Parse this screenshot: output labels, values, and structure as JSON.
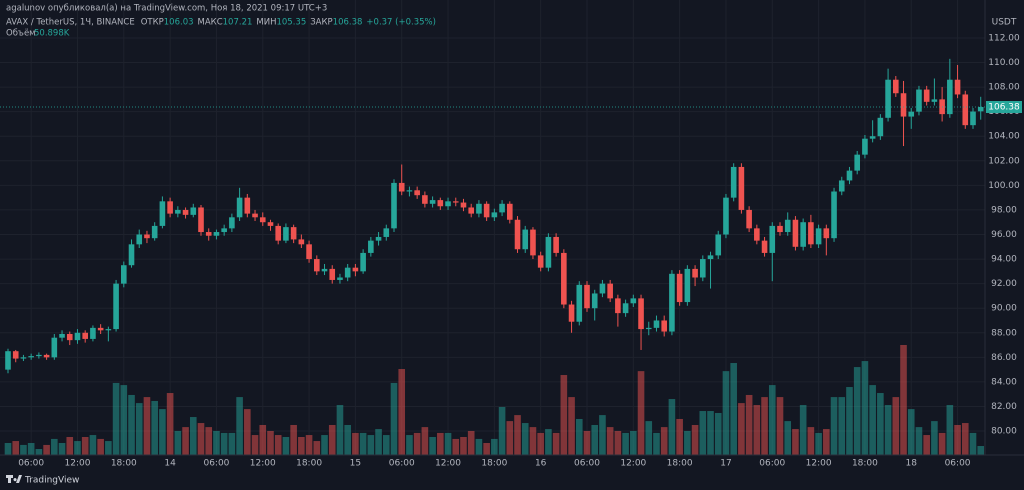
{
  "chart_data": {
    "type": "candlestick",
    "attribution": "agalunov опубликовал(а) на TradingView.com, Ноя 18, 2021 09:17 UTC+3",
    "symbol": "AVAX / TetherUS, 1Ч, BINANCE",
    "ohlc_labels": [
      "ОТКР",
      "МАКС",
      "МИН",
      "ЗАКР"
    ],
    "change": "+0.37 (+0.35%)",
    "currency": "USDT",
    "logo": "TradingView",
    "up_color": "#26a69a",
    "down_color": "#ef5350",
    "grid": true,
    "categories": [
      null,
      null,
      null,
      "06:00",
      null,
      null,
      null,
      null,
      null,
      "12:00",
      null,
      null,
      null,
      null,
      null,
      "18:00",
      null,
      null,
      null,
      null,
      null,
      "14",
      null,
      null,
      null,
      null,
      null,
      "06:00",
      null,
      null,
      null,
      null,
      null,
      "12:00",
      null,
      null,
      null,
      null,
      null,
      "18:00",
      null,
      null,
      null,
      null,
      null,
      "15",
      null,
      null,
      null,
      null,
      null,
      "06:00",
      null,
      null,
      null,
      null,
      null,
      "12:00",
      null,
      null,
      null,
      null,
      null,
      "18:00",
      null,
      null,
      null,
      null,
      null,
      "16",
      null,
      null,
      null,
      null,
      null,
      "06:00",
      null,
      null,
      null,
      null,
      null,
      "12:00",
      null,
      null,
      null,
      null,
      null,
      "18:00",
      null,
      null,
      null,
      null,
      null,
      "17",
      null,
      null,
      null,
      null,
      null,
      "06:00",
      null,
      null,
      null,
      null,
      null,
      "12:00",
      null,
      null,
      null,
      null,
      null,
      "18:00",
      null,
      null,
      null,
      null,
      null,
      "18",
      null,
      null,
      null,
      null,
      null,
      "06:00",
      null,
      null,
      null
    ],
    "ylim": [
      78.05,
      113.95
    ],
    "yticks": [
      {
        "value": 80,
        "label": "80.00"
      },
      {
        "value": 82,
        "label": "82.00"
      },
      {
        "value": 84,
        "label": "84.00"
      },
      {
        "value": 86,
        "label": "86.00"
      },
      {
        "value": 88,
        "label": "88.00"
      },
      {
        "value": 90,
        "label": "90.00"
      },
      {
        "value": 92,
        "label": "92.00"
      },
      {
        "value": 94,
        "label": "94.00"
      },
      {
        "value": 96,
        "label": "96.00"
      },
      {
        "value": 98,
        "label": "98.00"
      },
      {
        "value": 100,
        "label": "100.00"
      },
      {
        "value": 102,
        "label": "102.00"
      },
      {
        "value": 104,
        "label": "104.00"
      },
      {
        "value": 106,
        "label": "106.00"
      },
      {
        "value": 108,
        "label": "108.00"
      },
      {
        "value": 110,
        "label": "110.00"
      },
      {
        "value": 112,
        "label": "112.00"
      }
    ],
    "series": [
      {
        "name": "AVAX / TetherUS",
        "values": [
          [
            85.0,
            86.7,
            84.7,
            86.5
          ],
          [
            86.5,
            86.6,
            85.6,
            85.9
          ],
          [
            85.9,
            86.2,
            85.7,
            86.0
          ],
          [
            86.0,
            86.3,
            85.8,
            86.1
          ],
          [
            86.1,
            86.4,
            85.9,
            86.2
          ],
          [
            86.2,
            86.3,
            85.8,
            86.0
          ],
          [
            86.0,
            87.9,
            85.8,
            87.6
          ],
          [
            87.6,
            88.2,
            87.3,
            87.9
          ],
          [
            87.9,
            88.1,
            87.0,
            87.4
          ],
          [
            87.4,
            88.3,
            87.1,
            88.0
          ],
          [
            88.0,
            88.2,
            87.2,
            87.5
          ],
          [
            87.5,
            88.6,
            87.3,
            88.4
          ],
          [
            88.4,
            88.7,
            87.9,
            88.2
          ],
          [
            88.2,
            88.5,
            87.3,
            88.3
          ],
          [
            88.3,
            92.3,
            88.1,
            92.0
          ],
          [
            92.0,
            93.8,
            91.7,
            93.5
          ],
          [
            93.5,
            95.6,
            93.3,
            95.2
          ],
          [
            95.2,
            96.4,
            94.9,
            96.0
          ],
          [
            96.0,
            96.3,
            95.3,
            95.7
          ],
          [
            95.7,
            97.0,
            95.5,
            96.7
          ],
          [
            96.7,
            99.1,
            96.5,
            98.7
          ],
          [
            98.7,
            99.0,
            97.4,
            97.7
          ],
          [
            97.7,
            98.3,
            97.4,
            98.0
          ],
          [
            98.0,
            98.2,
            97.3,
            97.6
          ],
          [
            97.6,
            98.5,
            97.4,
            98.2
          ],
          [
            98.2,
            98.4,
            95.9,
            96.2
          ],
          [
            96.2,
            96.5,
            95.5,
            95.9
          ],
          [
            95.9,
            96.4,
            95.6,
            96.2
          ],
          [
            96.2,
            96.8,
            95.9,
            96.5
          ],
          [
            96.5,
            97.7,
            96.2,
            97.4
          ],
          [
            97.4,
            99.8,
            97.1,
            99.0
          ],
          [
            99.0,
            99.3,
            97.4,
            97.7
          ],
          [
            97.7,
            98.0,
            97.1,
            97.4
          ],
          [
            97.4,
            97.8,
            96.7,
            97.0
          ],
          [
            97.0,
            97.2,
            96.3,
            96.7
          ],
          [
            96.7,
            96.9,
            95.2,
            95.5
          ],
          [
            95.5,
            96.9,
            95.3,
            96.6
          ],
          [
            96.6,
            96.8,
            95.3,
            95.6
          ],
          [
            95.6,
            96.0,
            94.9,
            95.2
          ],
          [
            95.2,
            95.5,
            93.7,
            94.0
          ],
          [
            94.0,
            94.3,
            92.7,
            93.0
          ],
          [
            93.0,
            93.6,
            92.7,
            93.2
          ],
          [
            93.2,
            93.5,
            92.0,
            92.3
          ],
          [
            92.3,
            92.8,
            92.0,
            92.5
          ],
          [
            92.5,
            93.6,
            92.2,
            93.3
          ],
          [
            93.3,
            93.6,
            92.6,
            93.0
          ],
          [
            93.0,
            94.8,
            92.8,
            94.5
          ],
          [
            94.5,
            95.8,
            94.2,
            95.5
          ],
          [
            95.5,
            96.2,
            95.1,
            95.8
          ],
          [
            95.8,
            96.8,
            95.5,
            96.5
          ],
          [
            96.5,
            100.5,
            96.2,
            100.2
          ],
          [
            100.2,
            101.7,
            99.2,
            99.5
          ],
          [
            99.5,
            99.9,
            99.1,
            99.6
          ],
          [
            99.6,
            99.9,
            98.9,
            99.2
          ],
          [
            99.2,
            99.5,
            98.2,
            98.5
          ],
          [
            98.5,
            99.1,
            98.2,
            98.8
          ],
          [
            98.8,
            99.0,
            98.0,
            98.3
          ],
          [
            98.3,
            99.0,
            98.0,
            98.7
          ],
          [
            98.7,
            99.0,
            98.3,
            98.6
          ],
          [
            98.6,
            98.9,
            97.9,
            98.2
          ],
          [
            98.2,
            98.5,
            97.4,
            97.7
          ],
          [
            97.7,
            98.8,
            97.4,
            98.5
          ],
          [
            98.5,
            98.7,
            97.1,
            97.4
          ],
          [
            97.4,
            98.1,
            97.1,
            97.8
          ],
          [
            97.8,
            98.8,
            97.5,
            98.5
          ],
          [
            98.5,
            98.7,
            96.9,
            97.2
          ],
          [
            97.2,
            97.5,
            94.5,
            94.8
          ],
          [
            94.8,
            96.7,
            94.5,
            96.4
          ],
          [
            96.4,
            96.6,
            94.0,
            94.3
          ],
          [
            94.3,
            94.6,
            93.0,
            93.3
          ],
          [
            93.3,
            96.1,
            93.0,
            95.8
          ],
          [
            95.8,
            96.1,
            94.2,
            94.5
          ],
          [
            94.5,
            94.8,
            90.0,
            90.3
          ],
          [
            90.3,
            90.6,
            88.0,
            88.9
          ],
          [
            88.9,
            92.2,
            88.6,
            91.9
          ],
          [
            91.9,
            92.2,
            89.7,
            90.0
          ],
          [
            90.0,
            91.5,
            89.0,
            91.2
          ],
          [
            91.2,
            92.3,
            90.9,
            92.0
          ],
          [
            92.0,
            92.3,
            90.5,
            90.8
          ],
          [
            90.8,
            91.1,
            88.5,
            89.6
          ],
          [
            89.6,
            90.7,
            89.3,
            90.4
          ],
          [
            90.4,
            91.1,
            90.1,
            90.8
          ],
          [
            90.8,
            91.1,
            86.6,
            88.3
          ],
          [
            88.3,
            88.9,
            87.8,
            88.4
          ],
          [
            88.4,
            89.4,
            88.1,
            89.0
          ],
          [
            89.0,
            89.4,
            87.7,
            88.1
          ],
          [
            88.1,
            93.1,
            87.8,
            92.8
          ],
          [
            92.8,
            93.1,
            90.2,
            90.5
          ],
          [
            90.5,
            93.5,
            90.2,
            93.2
          ],
          [
            93.2,
            93.5,
            91.8,
            92.5
          ],
          [
            92.5,
            94.3,
            92.2,
            94.0
          ],
          [
            94.0,
            94.6,
            91.6,
            94.3
          ],
          [
            94.3,
            96.3,
            94.0,
            96.0
          ],
          [
            96.0,
            99.3,
            95.7,
            99.0
          ],
          [
            99.0,
            101.8,
            98.7,
            101.5
          ],
          [
            101.5,
            101.8,
            97.7,
            98.0
          ],
          [
            98.0,
            98.3,
            96.2,
            96.5
          ],
          [
            96.5,
            96.8,
            95.2,
            95.5
          ],
          [
            95.5,
            95.8,
            94.2,
            94.5
          ],
          [
            94.5,
            97.0,
            92.2,
            96.7
          ],
          [
            96.7,
            97.0,
            95.9,
            96.2
          ],
          [
            96.2,
            97.8,
            95.9,
            97.2
          ],
          [
            97.2,
            97.5,
            94.7,
            95.0
          ],
          [
            95.0,
            97.3,
            94.7,
            97.0
          ],
          [
            97.0,
            97.6,
            94.9,
            95.2
          ],
          [
            95.2,
            96.8,
            94.9,
            96.5
          ],
          [
            96.5,
            96.8,
            94.3,
            95.7
          ],
          [
            95.7,
            99.8,
            95.4,
            99.5
          ],
          [
            99.5,
            100.7,
            99.2,
            100.4
          ],
          [
            100.4,
            101.5,
            100.1,
            101.2
          ],
          [
            101.2,
            102.8,
            100.9,
            102.5
          ],
          [
            102.5,
            104.1,
            102.2,
            103.8
          ],
          [
            103.8,
            105.3,
            103.5,
            104.0
          ],
          [
            104.0,
            105.8,
            103.7,
            105.5
          ],
          [
            105.5,
            109.5,
            105.2,
            108.6
          ],
          [
            108.6,
            108.9,
            107.2,
            107.5
          ],
          [
            107.5,
            108.5,
            103.2,
            105.6
          ],
          [
            105.6,
            106.3,
            104.6,
            106.0
          ],
          [
            106.0,
            108.1,
            105.7,
            107.8
          ],
          [
            107.8,
            108.1,
            106.5,
            106.8
          ],
          [
            106.8,
            108.7,
            106.5,
            107.0
          ],
          [
            107.0,
            108.0,
            105.2,
            105.8
          ],
          [
            105.8,
            110.3,
            105.5,
            108.6
          ],
          [
            108.6,
            109.8,
            107.1,
            107.4
          ],
          [
            107.4,
            107.7,
            104.6,
            104.9
          ],
          [
            104.9,
            106.3,
            104.6,
            106.01
          ],
          [
            106.03,
            107.21,
            105.35,
            106.38
          ]
        ]
      }
    ],
    "volume": {
      "name": "Объём",
      "last_label": "50.898K",
      "values": [
        68,
        79,
        57,
        68,
        34,
        57,
        91,
        68,
        102,
        79,
        102,
        113,
        91,
        79,
        408,
        396,
        340,
        294,
        328,
        306,
        260,
        351,
        136,
        158,
        215,
        181,
        158,
        136,
        125,
        125,
        328,
        260,
        113,
        170,
        136,
        113,
        102,
        170,
        102,
        113,
        79,
        113,
        170,
        283,
        170,
        125,
        125,
        113,
        147,
        113,
        408,
        487,
        113,
        125,
        158,
        102,
        125,
        125,
        91,
        102,
        136,
        91,
        68,
        91,
        272,
        192,
        226,
        181,
        158,
        125,
        147,
        125,
        453,
        328,
        204,
        136,
        170,
        226,
        158,
        136,
        125,
        136,
        475,
        192,
        125,
        158,
        317,
        204,
        136,
        170,
        249,
        249,
        238,
        475,
        521,
        294,
        340,
        283,
        328,
        396,
        328,
        192,
        147,
        283,
        158,
        125,
        147,
        328,
        328,
        385,
        498,
        532,
        396,
        351,
        283,
        328,
        623,
        260,
        158,
        113,
        192,
        125,
        283,
        170,
        181,
        125,
        50.898
      ]
    }
  }
}
